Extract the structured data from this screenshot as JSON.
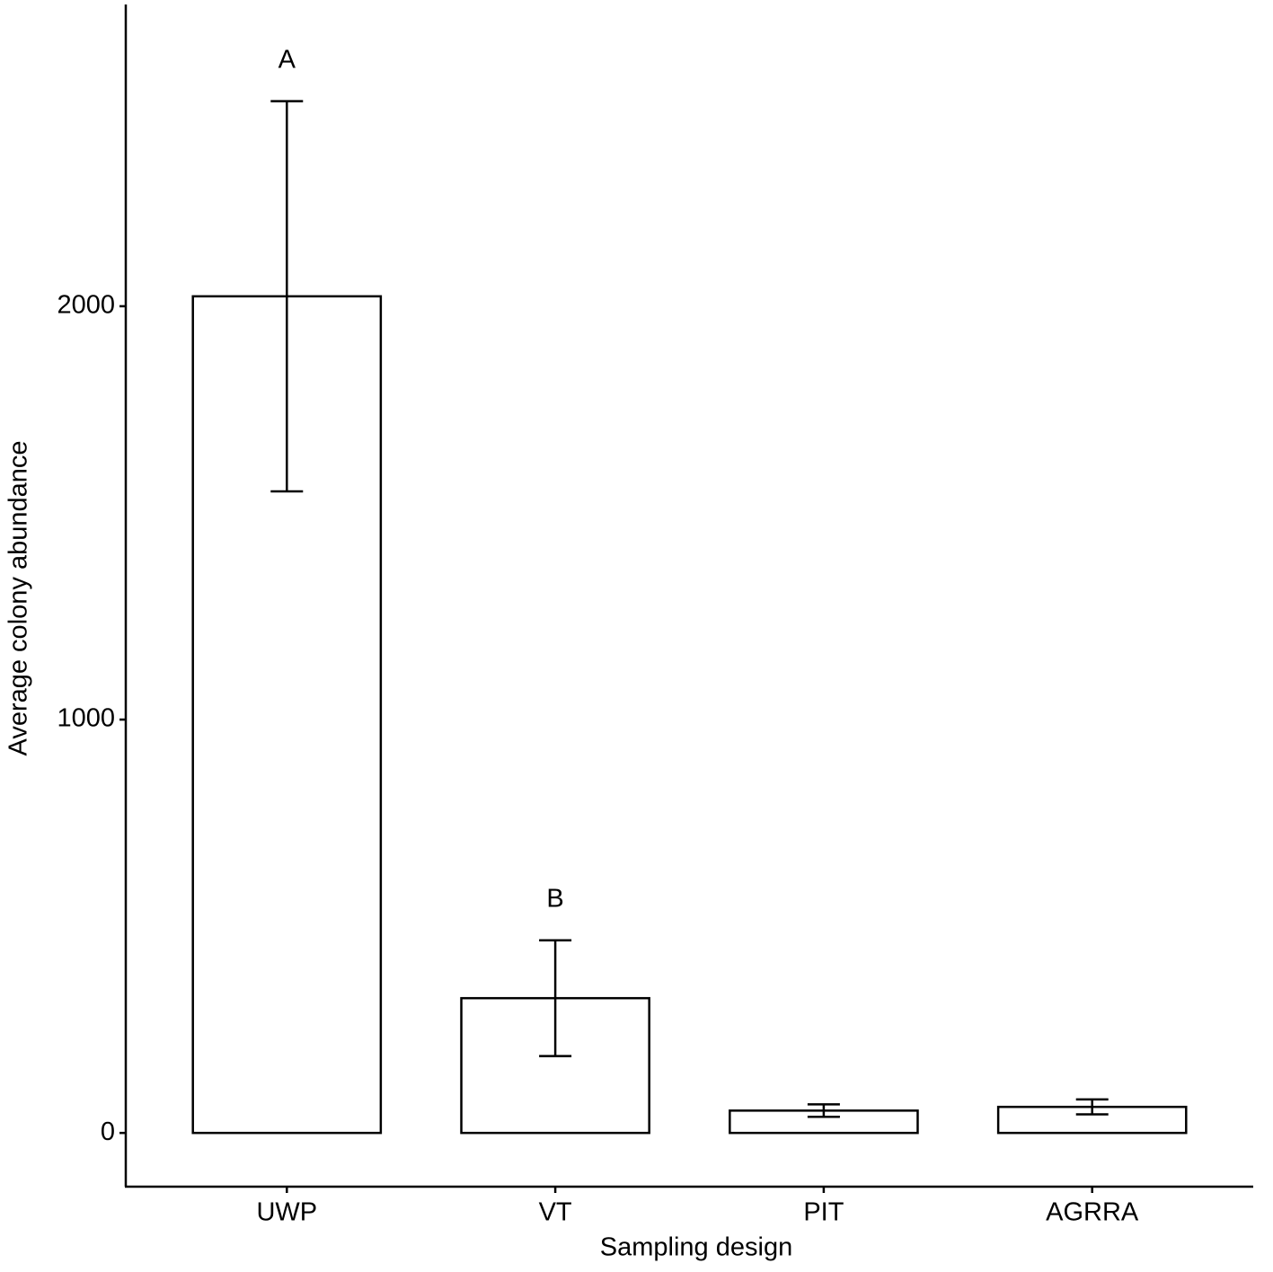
{
  "chart_data": {
    "type": "bar",
    "x_label": "Sampling design",
    "y_label": "Average colony abundance",
    "categories": [
      "UWP",
      "VT",
      "PIT",
      "AGRRA"
    ],
    "values": [
      2024,
      326,
      54,
      63
    ],
    "errors": [
      472,
      140,
      15,
      18
    ],
    "annotations": [
      "A",
      "B",
      null,
      null
    ],
    "color": "#ffffff",
    "edge_color": "#000000",
    "ylim": [
      -130,
      2730
    ],
    "yticks": [
      0,
      1000,
      2000
    ],
    "grid": false
  }
}
